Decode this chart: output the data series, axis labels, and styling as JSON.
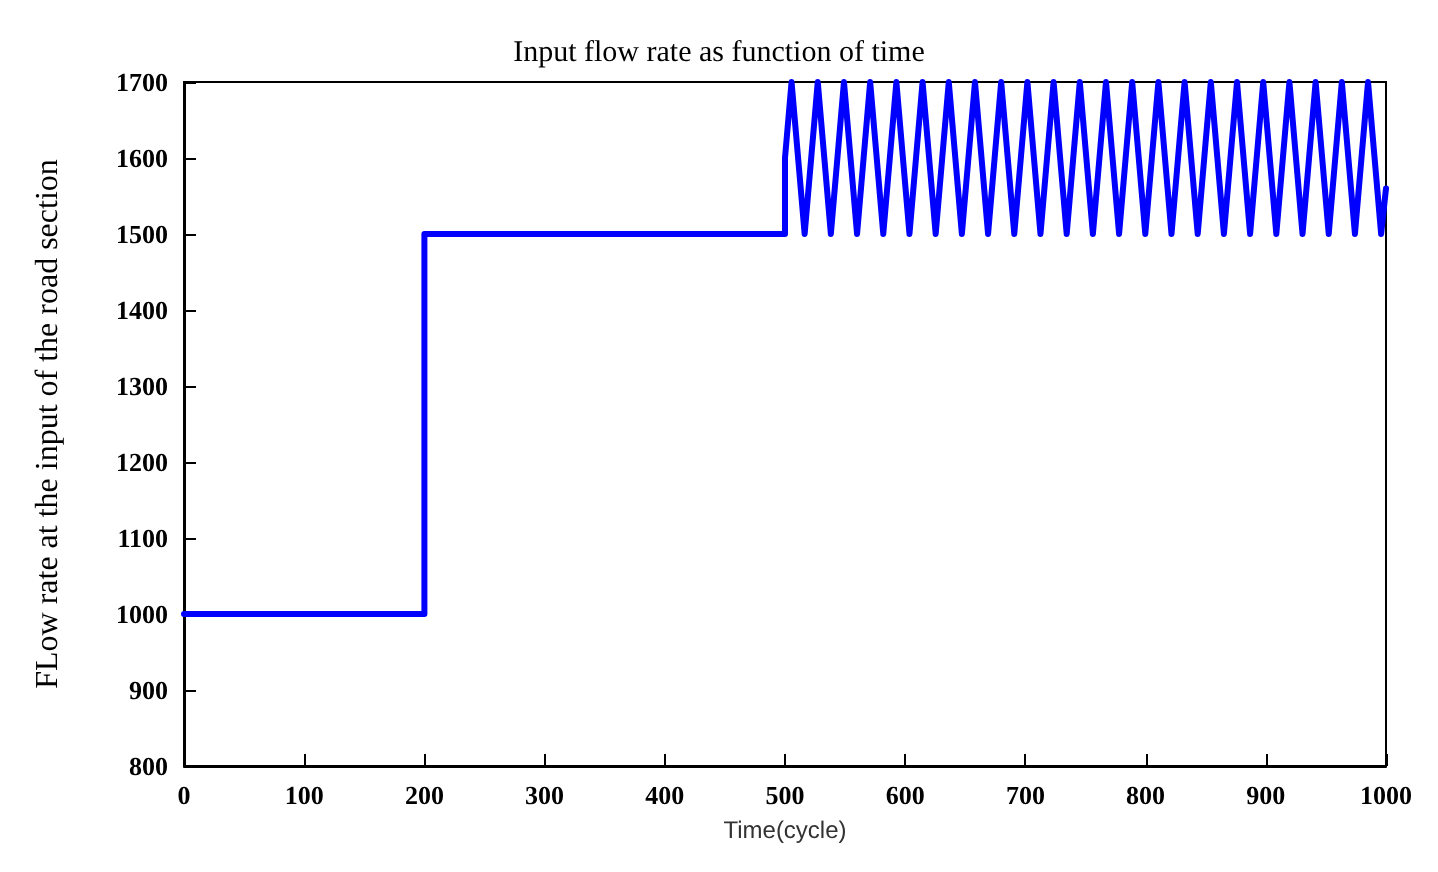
{
  "chart_data": {
    "type": "line",
    "title": "Input flow rate as function of time",
    "xlabel": "Time(cycle)",
    "ylabel": "FLow rate at the input of the road section",
    "xlim": [
      0,
      1000
    ],
    "xticks": [
      0,
      100,
      200,
      300,
      400,
      500,
      600,
      700,
      800,
      900,
      1000
    ],
    "ylim": [
      800,
      1700
    ],
    "yticks": [
      800,
      900,
      1000,
      1100,
      1200,
      1300,
      1400,
      1500,
      1600,
      1700
    ],
    "grid": false,
    "marker": "none",
    "line_style": "solid",
    "series": [
      {
        "color": "#0000ff",
        "x": [
          0,
          200,
          200,
          500,
          500,
          505.45,
          510.9,
          516.35,
          521.8,
          527.25,
          532.7,
          538.15,
          543.6,
          549.05,
          554.5,
          559.95,
          565.4,
          570.85,
          576.3,
          581.75,
          587.2,
          592.65,
          598.1,
          603.55,
          609,
          614.45,
          619.9,
          625.35,
          630.8,
          636.25,
          641.7,
          647.15,
          652.6,
          658.05,
          663.5,
          668.95,
          674.4,
          679.85,
          685.3,
          690.75,
          696.2,
          701.65,
          707.1,
          712.55,
          718,
          723.45,
          728.9,
          734.35,
          739.8,
          745.25,
          750.7,
          756.15,
          761.6,
          767.05,
          772.5,
          777.95,
          783.4,
          788.85,
          794.3,
          799.75,
          805.2,
          810.65,
          816.1,
          821.55,
          827,
          832.45,
          837.9,
          843.35,
          848.8,
          854.25,
          859.7,
          865.15,
          870.6,
          876.05,
          881.5,
          886.95,
          892.4,
          897.85,
          903.3,
          908.75,
          914.2,
          919.65,
          925.1,
          930.55,
          936,
          941.45,
          946.9,
          952.35,
          957.8,
          963.25,
          968.7,
          974.15,
          979.6,
          985.05,
          990.5,
          995.95,
          1000
        ],
        "values": [
          1000,
          1000,
          1500,
          1500,
          1600,
          1700,
          1600,
          1500,
          1600,
          1700,
          1600,
          1500,
          1600,
          1700,
          1600,
          1500,
          1600,
          1700,
          1600,
          1500,
          1600,
          1700,
          1600,
          1500,
          1600,
          1700,
          1600,
          1500,
          1600,
          1700,
          1600,
          1500,
          1600,
          1700,
          1600,
          1500,
          1600,
          1700,
          1600,
          1500,
          1600,
          1700,
          1600,
          1500,
          1600,
          1700,
          1600,
          1500,
          1600,
          1700,
          1600,
          1500,
          1600,
          1700,
          1600,
          1500,
          1600,
          1700,
          1600,
          1500,
          1600,
          1700,
          1600,
          1500,
          1600,
          1700,
          1600,
          1500,
          1600,
          1700,
          1600,
          1500,
          1600,
          1700,
          1600,
          1500,
          1600,
          1700,
          1600,
          1500,
          1600,
          1700,
          1600,
          1500,
          1600,
          1700,
          1600,
          1500,
          1600,
          1700,
          1600,
          1500,
          1600,
          1700,
          1600,
          1500,
          1560
        ]
      }
    ]
  }
}
